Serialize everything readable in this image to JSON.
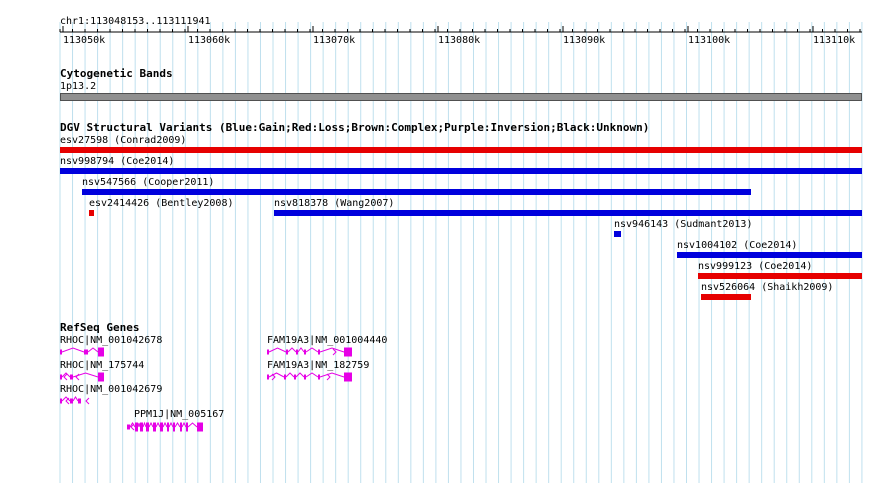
{
  "region": "chr1:113048153..113111941",
  "ruler": {
    "ticks": [
      "113050k",
      "113060k",
      "113070k",
      "113080k",
      "113090k",
      "113100k",
      "113110k"
    ]
  },
  "cytobands": {
    "title": "Cytogenetic Bands",
    "band": "1p13.2"
  },
  "dgv": {
    "title": "DGV Structural Variants (Blue:Gain;Red:Loss;Brown:Complex;Purple:Inversion;Black:Unknown)",
    "variants": [
      {
        "label": "esv27598 (Conrad2009)",
        "color": "#e60000"
      },
      {
        "label": "nsv998794 (Coe2014)",
        "color": "#0000dd"
      },
      {
        "label": "nsv547566 (Cooper2011)",
        "color": "#0000dd"
      },
      {
        "label": "esv2414426 (Bentley2008)",
        "color": "#e60000"
      },
      {
        "label": "nsv818378 (Wang2007)",
        "color": "#0000dd"
      },
      {
        "label": "nsv946143 (Sudmant2013)",
        "color": "#0000dd"
      },
      {
        "label": "nsv1004102 (Coe2014)",
        "color": "#0000dd"
      },
      {
        "label": "nsv999123 (Coe2014)",
        "color": "#e60000"
      },
      {
        "label": "nsv526064 (Shaikh2009)",
        "color": "#e60000"
      }
    ]
  },
  "refseq": {
    "title": "RefSeq Genes",
    "color": "#e600e6",
    "genes": [
      {
        "label": "RHOC|NM_001042678"
      },
      {
        "label": "RHOC|NM_175744"
      },
      {
        "label": "RHOC|NM_001042679"
      },
      {
        "label": "PPM1J|NM_005167"
      },
      {
        "label": "FAM19A3|NM_001004440"
      },
      {
        "label": "FAM19A3|NM_182759"
      }
    ]
  }
}
